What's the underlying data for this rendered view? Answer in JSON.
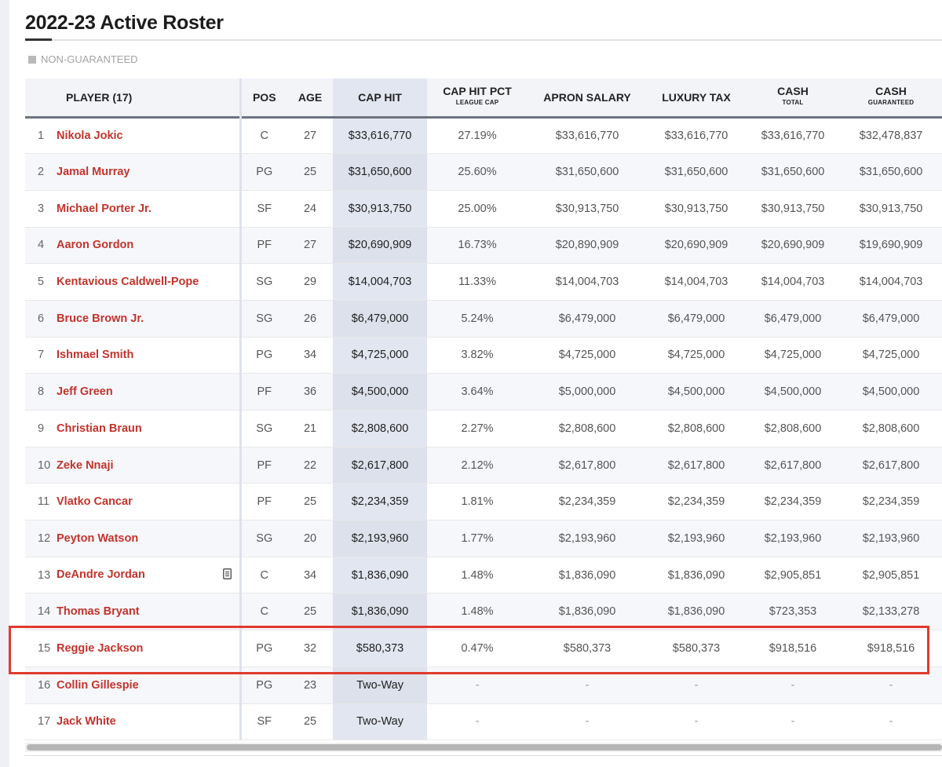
{
  "title": "2022-23 Active Roster",
  "legend": {
    "label": "NON-GUARANTEED",
    "swatch_color": "#b9b9b9"
  },
  "colors": {
    "player_name": "#c3342b",
    "highlight": "#e03a2d",
    "cap_column": "#e2e6f0"
  },
  "headers": {
    "player": "PLAYER (17)",
    "pos": "POS",
    "age": "AGE",
    "cap_hit": "CAP HIT",
    "cap_hit_pct": "CAP HIT PCT",
    "cap_hit_pct_sub": "LEAGUE CAP",
    "apron_salary": "APRON SALARY",
    "luxury_tax": "LUXURY TAX",
    "cash_total": "CASH",
    "cash_total_sub": "TOTAL",
    "cash_guaranteed": "CASH",
    "cash_guaranteed_sub": "GUARANTEED"
  },
  "rows": [
    {
      "num": "1",
      "name": "Nikola Jokic",
      "pos": "C",
      "age": "27",
      "cap_hit": "$33,616,770",
      "pct": "27.19%",
      "apron": "$33,616,770",
      "tax": "$33,616,770",
      "cash_total": "$33,616,770",
      "cash_guar": "$32,478,837"
    },
    {
      "num": "2",
      "name": "Jamal Murray",
      "pos": "PG",
      "age": "25",
      "cap_hit": "$31,650,600",
      "pct": "25.60%",
      "apron": "$31,650,600",
      "tax": "$31,650,600",
      "cash_total": "$31,650,600",
      "cash_guar": "$31,650,600"
    },
    {
      "num": "3",
      "name": "Michael Porter Jr.",
      "pos": "SF",
      "age": "24",
      "cap_hit": "$30,913,750",
      "pct": "25.00%",
      "apron": "$30,913,750",
      "tax": "$30,913,750",
      "cash_total": "$30,913,750",
      "cash_guar": "$30,913,750"
    },
    {
      "num": "4",
      "name": "Aaron Gordon",
      "pos": "PF",
      "age": "27",
      "cap_hit": "$20,690,909",
      "pct": "16.73%",
      "apron": "$20,890,909",
      "tax": "$20,690,909",
      "cash_total": "$20,690,909",
      "cash_guar": "$19,690,909"
    },
    {
      "num": "5",
      "name": "Kentavious Caldwell-Pope",
      "pos": "SG",
      "age": "29",
      "cap_hit": "$14,004,703",
      "pct": "11.33%",
      "apron": "$14,004,703",
      "tax": "$14,004,703",
      "cash_total": "$14,004,703",
      "cash_guar": "$14,004,703"
    },
    {
      "num": "6",
      "name": "Bruce Brown Jr.",
      "pos": "SG",
      "age": "26",
      "cap_hit": "$6,479,000",
      "pct": "5.24%",
      "apron": "$6,479,000",
      "tax": "$6,479,000",
      "cash_total": "$6,479,000",
      "cash_guar": "$6,479,000"
    },
    {
      "num": "7",
      "name": "Ishmael Smith",
      "pos": "PG",
      "age": "34",
      "cap_hit": "$4,725,000",
      "pct": "3.82%",
      "apron": "$4,725,000",
      "tax": "$4,725,000",
      "cash_total": "$4,725,000",
      "cash_guar": "$4,725,000"
    },
    {
      "num": "8",
      "name": "Jeff Green",
      "pos": "PF",
      "age": "36",
      "cap_hit": "$4,500,000",
      "pct": "3.64%",
      "apron": "$5,000,000",
      "tax": "$4,500,000",
      "cash_total": "$4,500,000",
      "cash_guar": "$4,500,000"
    },
    {
      "num": "9",
      "name": "Christian Braun",
      "pos": "SG",
      "age": "21",
      "cap_hit": "$2,808,600",
      "pct": "2.27%",
      "apron": "$2,808,600",
      "tax": "$2,808,600",
      "cash_total": "$2,808,600",
      "cash_guar": "$2,808,600"
    },
    {
      "num": "10",
      "name": "Zeke Nnaji",
      "pos": "PF",
      "age": "22",
      "cap_hit": "$2,617,800",
      "pct": "2.12%",
      "apron": "$2,617,800",
      "tax": "$2,617,800",
      "cash_total": "$2,617,800",
      "cash_guar": "$2,617,800"
    },
    {
      "num": "11",
      "name": "Vlatko Cancar",
      "pos": "PF",
      "age": "25",
      "cap_hit": "$2,234,359",
      "pct": "1.81%",
      "apron": "$2,234,359",
      "tax": "$2,234,359",
      "cash_total": "$2,234,359",
      "cash_guar": "$2,234,359"
    },
    {
      "num": "12",
      "name": "Peyton Watson",
      "pos": "SG",
      "age": "20",
      "cap_hit": "$2,193,960",
      "pct": "1.77%",
      "apron": "$2,193,960",
      "tax": "$2,193,960",
      "cash_total": "$2,193,960",
      "cash_guar": "$2,193,960"
    },
    {
      "num": "13",
      "name": "DeAndre Jordan",
      "pos": "C",
      "age": "34",
      "cap_hit": "$1,836,090",
      "pct": "1.48%",
      "apron": "$1,836,090",
      "tax": "$1,836,090",
      "cash_total": "$2,905,851",
      "cash_guar": "$2,905,851",
      "note_icon": "document-icon"
    },
    {
      "num": "14",
      "name": "Thomas Bryant",
      "pos": "C",
      "age": "25",
      "cap_hit": "$1,836,090",
      "pct": "1.48%",
      "apron": "$1,836,090",
      "tax": "$1,836,090",
      "cash_total": "$723,353",
      "cash_guar": "$2,133,278"
    },
    {
      "num": "15",
      "name": "Reggie Jackson",
      "pos": "PG",
      "age": "32",
      "cap_hit": "$580,373",
      "pct": "0.47%",
      "apron": "$580,373",
      "tax": "$580,373",
      "cash_total": "$918,516",
      "cash_guar": "$918,516",
      "highlighted": true
    },
    {
      "num": "16",
      "name": "Collin Gillespie",
      "pos": "PG",
      "age": "23",
      "cap_hit": "Two-Way",
      "pct": "-",
      "apron": "-",
      "tax": "-",
      "cash_total": "-",
      "cash_guar": "-"
    },
    {
      "num": "17",
      "name": "Jack White",
      "pos": "SF",
      "age": "25",
      "cap_hit": "Two-Way",
      "pct": "-",
      "apron": "-",
      "tax": "-",
      "cash_total": "-",
      "cash_guar": "-"
    }
  ]
}
